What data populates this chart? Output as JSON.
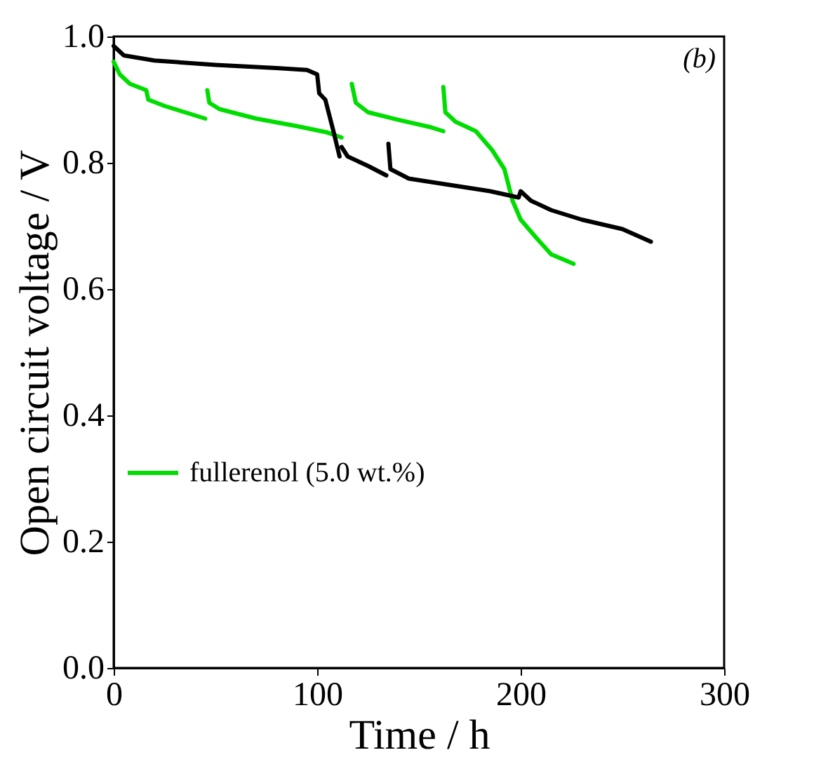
{
  "chart_data": {
    "type": "line",
    "xlabel": "Time / h",
    "ylabel": "Open circuit voltage / V",
    "annotations": [
      "(b)"
    ],
    "xlim": [
      0,
      300
    ],
    "xticks": [
      0,
      100,
      200,
      300
    ],
    "ylim": [
      0,
      1.0
    ],
    "yticks": [
      {
        "value": 0,
        "label": "0.0"
      },
      {
        "value": 0.2,
        "label": "0.2"
      },
      {
        "value": 0.4,
        "label": "0.4"
      },
      {
        "value": 0.6,
        "label": "0.6"
      },
      {
        "value": 0.8,
        "label": "0.8"
      },
      {
        "value": 1,
        "label": "1.0"
      }
    ],
    "grid": false,
    "legend": "left",
    "marker": "none",
    "line_style": "solid",
    "series": [
      {
        "name": "fullerenol (5.0 wt.%)",
        "color": "#00dd00",
        "x": [
          0,
          3,
          8,
          16,
          17,
          25,
          35,
          45,
          null,
          46,
          47,
          52,
          70,
          90,
          105,
          112,
          null,
          117,
          119,
          125,
          140,
          155,
          162,
          null,
          162,
          163,
          168,
          178,
          186,
          192,
          196,
          200,
          208,
          215,
          226
        ],
        "values": [
          0.96,
          0.94,
          0.925,
          0.915,
          0.9,
          0.89,
          0.88,
          0.87,
          null,
          0.915,
          0.895,
          0.885,
          0.87,
          0.858,
          0.848,
          0.84,
          null,
          0.925,
          0.895,
          0.88,
          0.868,
          0.857,
          0.85,
          null,
          0.92,
          0.88,
          0.865,
          0.85,
          0.82,
          0.79,
          0.74,
          0.71,
          0.68,
          0.655,
          0.64
        ]
      },
      {
        "color": "#000000",
        "x": [
          0,
          5,
          20,
          50,
          80,
          95,
          100,
          101,
          104,
          108,
          111,
          null,
          112,
          115,
          125,
          134,
          null,
          135,
          136,
          145,
          165,
          185,
          199,
          200,
          205,
          215,
          230,
          250,
          264
        ],
        "values": [
          0.985,
          0.97,
          0.962,
          0.955,
          0.95,
          0.947,
          0.94,
          0.91,
          0.9,
          0.85,
          0.81,
          null,
          0.825,
          0.81,
          0.795,
          0.78,
          null,
          0.83,
          0.79,
          0.775,
          0.765,
          0.755,
          0.745,
          0.755,
          0.74,
          0.725,
          0.71,
          0.695,
          0.675
        ]
      }
    ]
  }
}
